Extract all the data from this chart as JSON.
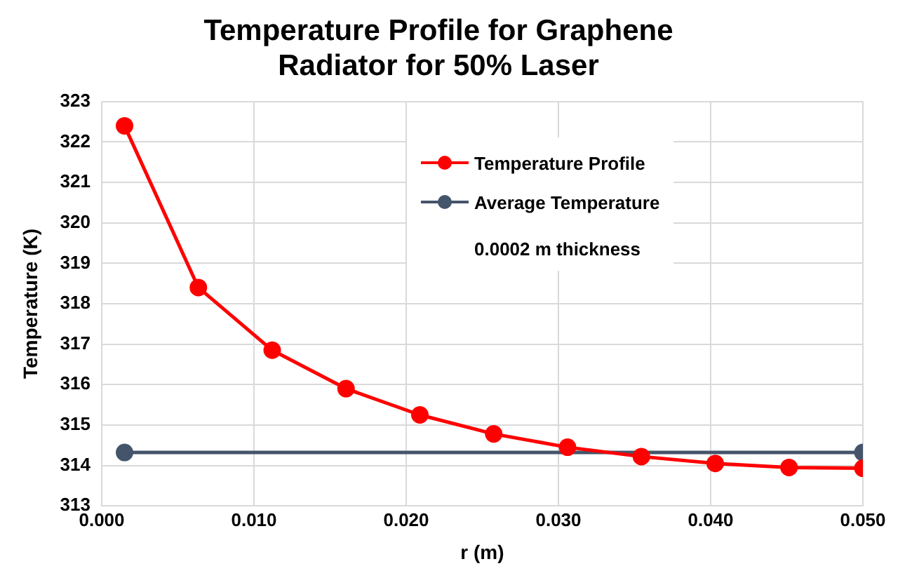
{
  "chart_data": {
    "type": "line",
    "title": "Temperature Profile for Graphene Radiator for 50% Laser",
    "xlabel": "r (m)",
    "ylabel": "Temperature (K)",
    "series": [
      {
        "name": "Temperature Profile",
        "color": "#ff0000",
        "x": [
          0.0015,
          0.00635,
          0.0112,
          0.01605,
          0.0209,
          0.02575,
          0.0306,
          0.03545,
          0.0403,
          0.04515,
          0.05
        ],
        "values": [
          322.4,
          318.4,
          316.85,
          315.9,
          315.25,
          314.78,
          314.45,
          314.22,
          314.05,
          313.95,
          313.93
        ]
      },
      {
        "name": "Average Temperature",
        "color": "#44546a",
        "x": [
          0.0015,
          0.05
        ],
        "values": [
          314.32,
          314.32
        ]
      }
    ],
    "xlim": [
      0,
      0.05
    ],
    "xticks": [
      {
        "value": 0,
        "label": "0.000"
      },
      {
        "value": 0.01,
        "label": "0.010"
      },
      {
        "value": 0.02,
        "label": "0.020"
      },
      {
        "value": 0.03,
        "label": "0.030"
      },
      {
        "value": 0.04,
        "label": "0.040"
      },
      {
        "value": 0.05,
        "label": "0.050"
      }
    ],
    "ylim": [
      313,
      323
    ],
    "yticks": [
      313,
      314,
      315,
      316,
      317,
      318,
      319,
      320,
      321,
      322,
      323
    ],
    "grid": true,
    "legend": "top",
    "marker": "circle",
    "line_style": "solid",
    "annotations": [
      "0.0002 m thickness"
    ]
  }
}
